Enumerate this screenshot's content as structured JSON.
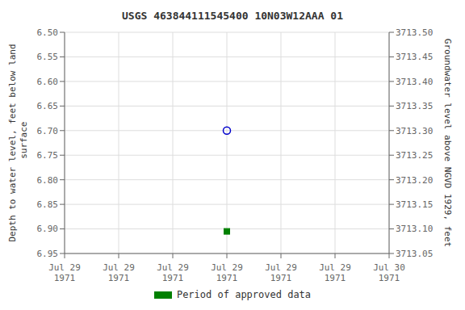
{
  "chart_data": {
    "type": "scatter",
    "title": "USGS 463844111545400 10N03W12AAA 01",
    "y_label": "Depth to water level, feet below land\n surface",
    "y2_label": "Groundwater level above NGVD 1929, feet",
    "categories": [
      "Jul 29\n1971",
      "Jul 29\n1971",
      "Jul 29\n1971",
      "Jul 29\n1971",
      "Jul 29\n1971",
      "Jul 29\n1971",
      "Jul 30\n1971"
    ],
    "series": [
      {
        "color": "#0000cc",
        "marker": "circle",
        "values": [
          null,
          null,
          null,
          6.7,
          null,
          null,
          null
        ]
      },
      {
        "name": "Period of approved data",
        "color": "#008000",
        "marker": "square",
        "values": [
          null,
          null,
          null,
          6.905,
          null,
          null,
          null
        ]
      }
    ],
    "ylim": [
      6.95,
      6.5
    ],
    "yticks": [
      {
        "value": 6.5,
        "label": "6.50"
      },
      6.55,
      {
        "value": 6.6,
        "label": "6.60"
      },
      6.65,
      {
        "value": 6.7,
        "label": "6.70"
      },
      6.75,
      {
        "value": 6.8,
        "label": "6.80"
      },
      6.85,
      {
        "value": 6.9,
        "label": "6.90"
      },
      6.95
    ],
    "y2lim": [
      3713.05,
      3713.5
    ],
    "y2ticks": [
      3713.05,
      {
        "value": 3713.1,
        "label": "3713.10"
      },
      3713.15,
      {
        "value": 3713.2,
        "label": "3713.20"
      },
      3713.25,
      {
        "value": 3713.3,
        "label": "3713.30"
      },
      3713.35,
      {
        "value": 3713.4,
        "label": "3713.40"
      },
      3713.45,
      {
        "value": 3713.5,
        "label": "3713.50"
      }
    ],
    "grid": true,
    "legend": "bottom"
  }
}
